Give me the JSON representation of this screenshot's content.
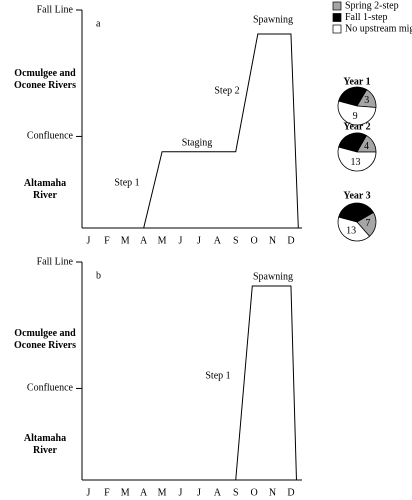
{
  "chart_data": [
    {
      "type": "line",
      "panel_label": "a",
      "xlim": [
        -0.35,
        11.6
      ],
      "xticks": [
        {
          "value": 0,
          "label": "J"
        },
        {
          "value": 1,
          "label": "F"
        },
        {
          "value": 2,
          "label": "M"
        },
        {
          "value": 3,
          "label": "A"
        },
        {
          "value": 4,
          "label": "M"
        },
        {
          "value": 5,
          "label": "J"
        },
        {
          "value": 6,
          "label": "J"
        },
        {
          "value": 7,
          "label": "A"
        },
        {
          "value": 8,
          "label": "S"
        },
        {
          "value": 9,
          "label": "O"
        },
        {
          "value": 10,
          "label": "N"
        },
        {
          "value": 11,
          "label": "D"
        }
      ],
      "ylim": [
        0,
        1
      ],
      "yticks": [
        {
          "value": 1,
          "label": "Fall Line"
        },
        {
          "value": 0.42,
          "label": "Confluence"
        }
      ],
      "y_region_labels": [
        "Ocmulgee and Oconee Rivers",
        "Altamaha River"
      ],
      "annotations": [
        "Step 1",
        "Staging",
        "Step 2",
        "Spawning"
      ],
      "x": [
        3,
        4,
        8,
        9.2,
        11,
        11.4
      ],
      "values": [
        0,
        0.35,
        0.35,
        0.89,
        0.89,
        0
      ],
      "color": "#000000"
    },
    {
      "type": "line",
      "panel_label": "b",
      "xlim": [
        -0.35,
        11.6
      ],
      "xticks": [
        {
          "value": 0,
          "label": "J"
        },
        {
          "value": 1,
          "label": "F"
        },
        {
          "value": 2,
          "label": "M"
        },
        {
          "value": 3,
          "label": "A"
        },
        {
          "value": 4,
          "label": "M"
        },
        {
          "value": 5,
          "label": "J"
        },
        {
          "value": 6,
          "label": "J"
        },
        {
          "value": 7,
          "label": "A"
        },
        {
          "value": 8,
          "label": "S"
        },
        {
          "value": 9,
          "label": "O"
        },
        {
          "value": 10,
          "label": "N"
        },
        {
          "value": 11,
          "label": "D"
        }
      ],
      "ylim": [
        0,
        1
      ],
      "yticks": [
        {
          "value": 1,
          "label": "Fall Line"
        },
        {
          "value": 0.42,
          "label": "Confluence"
        }
      ],
      "y_region_labels": [
        "Ocmulgee and Oconee Rivers",
        "Altamaha River"
      ],
      "annotations": [
        "Spawning",
        "Step 1"
      ],
      "x": [
        8,
        8.9,
        11,
        11.3
      ],
      "values": [
        0,
        0.89,
        0.89,
        0
      ],
      "color": "#000000"
    },
    {
      "type": "pie",
      "title": "Year 1",
      "categories": [
        "Spring 2-step",
        "Fall 1-step",
        "No upstream migration"
      ],
      "values": [
        3,
        5,
        9
      ],
      "colors": [
        "#a6a6a6",
        "#000000",
        "#ffffff"
      ]
    },
    {
      "type": "pie",
      "title": "Year 2",
      "categories": [
        "Spring 2-step",
        "Fall 1-step",
        "No upstream migration"
      ],
      "values": [
        4,
        7,
        13
      ],
      "colors": [
        "#a6a6a6",
        "#000000",
        "#ffffff"
      ]
    },
    {
      "type": "pie",
      "title": "Year 3",
      "categories": [
        "Spring 2-step",
        "Fall 1-step",
        "No upstream migration"
      ],
      "values": [
        7,
        12,
        13
      ],
      "colors": [
        "#a6a6a6",
        "#000000",
        "#ffffff"
      ]
    }
  ]
}
